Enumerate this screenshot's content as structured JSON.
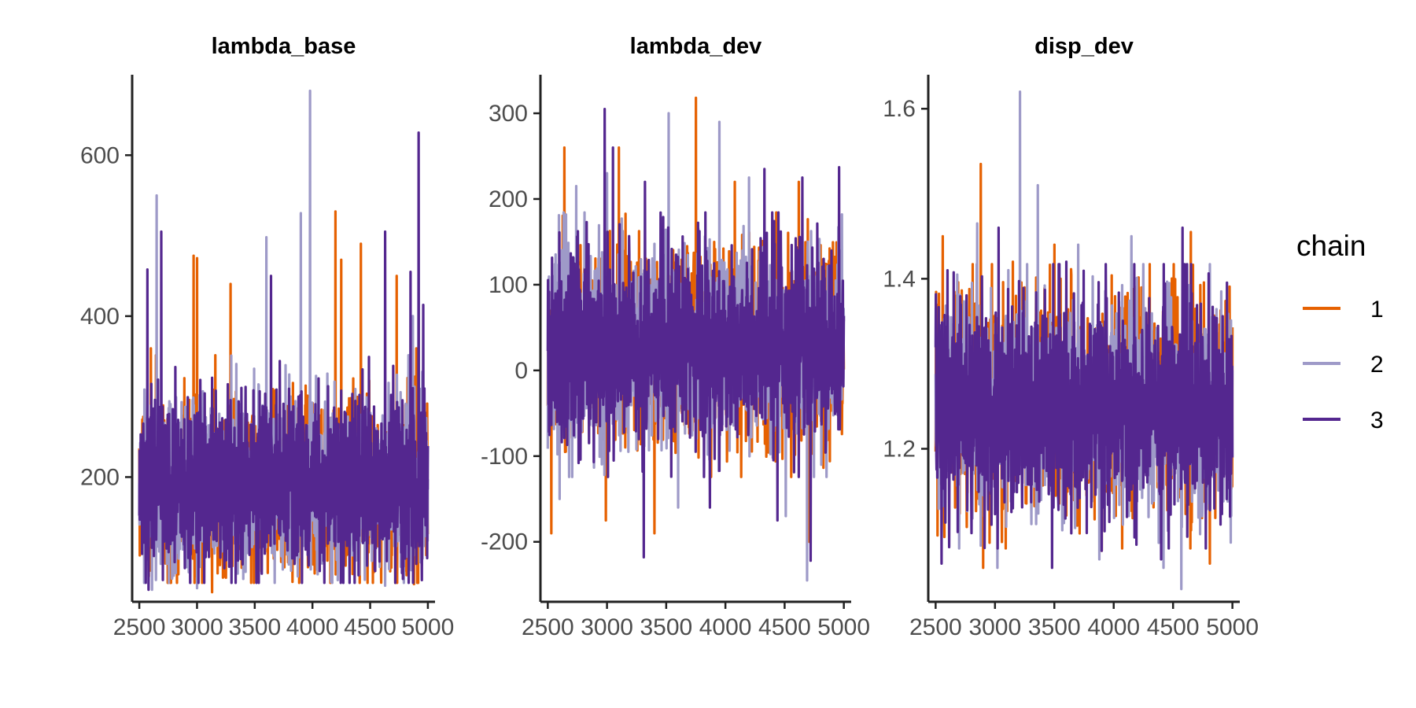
{
  "chart_data": [
    {
      "type": "line",
      "title": "lambda_base",
      "xlabel": "",
      "ylabel": "",
      "x_range": [
        2500,
        5000
      ],
      "xlim": [
        2438,
        5062
      ],
      "ylim": [
        45,
        700
      ],
      "x_ticks": [
        2500,
        3000,
        3500,
        4000,
        4500,
        5000
      ],
      "y_ticks": [
        200,
        400,
        600
      ],
      "typical_range": [
        100,
        320
      ],
      "center": 190,
      "series": [
        {
          "name": "1",
          "peaks": [
            [
              2600,
              360
            ],
            [
              2970,
              475
            ],
            [
              3000,
              472
            ],
            [
              3290,
              440
            ],
            [
              4200,
              530
            ],
            [
              4250,
              470
            ],
            [
              4420,
              490
            ],
            [
              4730,
              450
            ],
            [
              4900,
              360
            ]
          ],
          "troughs": [
            [
              3130,
              57
            ],
            [
              3250,
              75
            ],
            [
              4880,
              67
            ]
          ]
        },
        {
          "name": "2",
          "peaks": [
            [
              2650,
              550
            ],
            [
              3980,
              680
            ],
            [
              3900,
              528
            ],
            [
              3600,
              498
            ],
            [
              4870,
              400
            ]
          ],
          "troughs": [
            [
              2610,
              60
            ],
            [
              3000,
              62
            ],
            [
              4220,
              72
            ],
            [
              4630,
              65
            ]
          ]
        },
        {
          "name": "3",
          "peaks": [
            [
              2570,
              458
            ],
            [
              2690,
              505
            ],
            [
              3640,
              450
            ],
            [
              4630,
              505
            ],
            [
              4920,
              628
            ],
            [
              4850,
              455
            ],
            [
              4960,
              414
            ]
          ],
          "troughs": [
            [
              2580,
              60
            ],
            [
              3560,
              80
            ],
            [
              4400,
              78
            ]
          ]
        }
      ]
    },
    {
      "type": "line",
      "title": "lambda_dev",
      "xlabel": "",
      "ylabel": "",
      "x_range": [
        2500,
        5000
      ],
      "xlim": [
        2438,
        5062
      ],
      "ylim": [
        -270,
        345
      ],
      "x_ticks": [
        2500,
        3000,
        3500,
        4000,
        4500,
        5000
      ],
      "y_ticks": [
        -200,
        -100,
        0,
        100,
        200,
        300
      ],
      "typical_range": [
        -90,
        150
      ],
      "center": 30,
      "series": [
        {
          "name": "1",
          "peaks": [
            [
              2640,
              260
            ],
            [
              3100,
              260
            ],
            [
              3750,
              318
            ],
            [
              4080,
              220
            ],
            [
              4620,
              220
            ]
          ],
          "troughs": [
            [
              2530,
              -190
            ],
            [
              2990,
              -175
            ],
            [
              3400,
              -190
            ],
            [
              4710,
              -200
            ]
          ]
        },
        {
          "name": "2",
          "peaks": [
            [
              2740,
              215
            ],
            [
              3000,
              230
            ],
            [
              3520,
              300
            ],
            [
              3950,
              290
            ],
            [
              4200,
              225
            ]
          ],
          "troughs": [
            [
              2600,
              -150
            ],
            [
              3600,
              -160
            ],
            [
              4510,
              -170
            ],
            [
              4690,
              -245
            ]
          ]
        },
        {
          "name": "3",
          "peaks": [
            [
              2980,
              305
            ],
            [
              3050,
              260
            ],
            [
              3320,
              220
            ],
            [
              4330,
              235
            ],
            [
              4650,
              225
            ],
            [
              4960,
              237
            ]
          ],
          "troughs": [
            [
              3310,
              -218
            ],
            [
              3870,
              -160
            ],
            [
              4440,
              -175
            ],
            [
              4720,
              -222
            ]
          ]
        }
      ]
    },
    {
      "type": "line",
      "title": "disp_dev",
      "xlabel": "",
      "ylabel": "",
      "x_range": [
        2500,
        5000
      ],
      "xlim": [
        2438,
        5062
      ],
      "ylim": [
        1.02,
        1.64
      ],
      "x_ticks": [
        2500,
        3000,
        3500,
        4000,
        4500,
        5000
      ],
      "y_ticks": [
        1.2,
        1.4,
        1.6
      ],
      "typical_range": [
        1.12,
        1.38
      ],
      "center": 1.25,
      "series": [
        {
          "name": "1",
          "peaks": [
            [
              2560,
              1.45
            ],
            [
              2880,
              1.535
            ],
            [
              3150,
              1.42
            ],
            [
              3500,
              1.44
            ],
            [
              4650,
              1.455
            ]
          ],
          "troughs": [
            [
              2900,
              1.06
            ],
            [
              4810,
              1.065
            ],
            [
              3900,
              1.08
            ]
          ]
        },
        {
          "name": "2",
          "peaks": [
            [
              3210,
              1.62
            ],
            [
              3360,
              1.51
            ],
            [
              2850,
              1.465
            ],
            [
              4150,
              1.45
            ],
            [
              3700,
              1.44
            ]
          ],
          "troughs": [
            [
              3020,
              1.06
            ],
            [
              3880,
              1.07
            ],
            [
              4570,
              1.035
            ],
            [
              4420,
              1.06
            ]
          ]
        },
        {
          "name": "3",
          "peaks": [
            [
              2600,
              1.41
            ],
            [
              3030,
              1.46
            ],
            [
              4580,
              1.46
            ],
            [
              3600,
              1.42
            ]
          ],
          "troughs": [
            [
              2550,
              1.065
            ],
            [
              3480,
              1.06
            ],
            [
              3900,
              1.08
            ],
            [
              4400,
              1.07
            ]
          ]
        }
      ]
    }
  ],
  "legend": {
    "title": "chain",
    "position": "right",
    "items": [
      {
        "label": "1",
        "color": "#e66101"
      },
      {
        "label": "2",
        "color": "#9e9ac8"
      },
      {
        "label": "3",
        "color": "#54278f"
      }
    ]
  }
}
